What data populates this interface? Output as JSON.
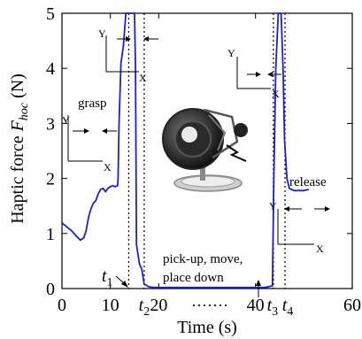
{
  "chart_data": {
    "type": "line",
    "xlabel": "Time (s)",
    "ylabel_main": "Haptic force ",
    "ylabel_var": "F",
    "ylabel_sub": "hoc",
    "ylabel_unit": " (N)",
    "xlim": [
      0,
      60
    ],
    "ylim": [
      0,
      5
    ],
    "x_ticks": [
      0,
      10,
      20,
      40,
      60
    ],
    "x_tick_labels": [
      "0",
      "10",
      "20",
      "40",
      "60"
    ],
    "y_ticks": [
      0,
      1,
      2,
      3,
      4,
      5
    ],
    "y_tick_labels": [
      "0",
      "1",
      "2",
      "3",
      "4",
      "5"
    ],
    "x_gap_dots": "·······",
    "grid": false,
    "line_color": "#1f1fd0",
    "series": [
      {
        "x": [
          0,
          0.3,
          1,
          2,
          3,
          3.8,
          4.5,
          5,
          5.5,
          6,
          6.5,
          7,
          7.5,
          8,
          8.5,
          9,
          9.5,
          10,
          10.5,
          11,
          11.5,
          11.6,
          11.8,
          12.2,
          12.7,
          13.2,
          13.4,
          13.8,
          14.5,
          15.0,
          15.2,
          15.4,
          16.0,
          16.5,
          17,
          18,
          19,
          20,
          25,
          30,
          35,
          40,
          42,
          43.5,
          43.8,
          44.2,
          44.7,
          45.3,
          45.7,
          46.0,
          46.5,
          47,
          48,
          50,
          51
        ],
        "y": [
          1.2,
          1.17,
          1.12,
          1.05,
          0.95,
          0.88,
          0.92,
          1.05,
          1.3,
          1.45,
          1.55,
          1.6,
          1.72,
          1.8,
          1.82,
          1.76,
          1.82,
          1.85,
          1.87,
          1.85,
          1.87,
          2.0,
          3.0,
          4.1,
          4.4,
          5.0,
          5.0,
          5.0,
          5.0,
          5.0,
          4.0,
          0.8,
          0.45,
          0.35,
          0.08,
          0.03,
          0.02,
          0.02,
          0.02,
          0.02,
          0.02,
          0.02,
          0.02,
          0.05,
          2.0,
          4.0,
          5.0,
          5.0,
          4.0,
          2.7,
          2.0,
          1.82,
          1.78,
          1.78,
          1.8
        ]
      }
    ],
    "vertical_markers": [
      {
        "label_base": "t",
        "label_sub": "1",
        "x": 13.8
      },
      {
        "label_base": "t",
        "label_sub": "2",
        "x": 17.0
      },
      {
        "label_base": "t",
        "label_sub": "3",
        "x": 43.7
      },
      {
        "label_base": "t",
        "label_sub": "4",
        "x": 46.1
      }
    ],
    "annotations": {
      "grasp": "grasp",
      "release": "release",
      "pickup_line1": "pick-up, move,",
      "pickup_line2": "place down",
      "axis_y": "Y",
      "axis_x": "X"
    }
  }
}
